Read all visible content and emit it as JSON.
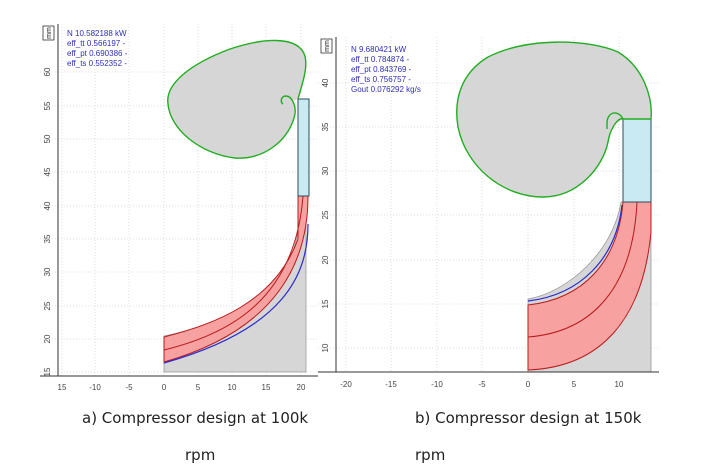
{
  "colors": {
    "volute_fill": "#d6d6d6",
    "volute_stroke": "#1fae1f",
    "impeller_fill": "#f7a1a1",
    "impeller_stroke": "#b81a1a",
    "diffuser_fill": "#c9eaf3",
    "shroud_stroke": "#2a2ad0",
    "annotation_text": "#2e2eb8",
    "grid": "#cfcfcf"
  },
  "panels": [
    {
      "unit_label": "mm",
      "annotations": [
        "N 10.582188 kW",
        "eff_tt 0.566197 -",
        "eff_pt 0.690386 -",
        "eff_ts 0.552352 -"
      ],
      "x_ticks": [
        "15",
        "-10",
        "-5",
        "0",
        "5",
        "10",
        "15",
        "20"
      ],
      "y_ticks": [
        "60",
        "55",
        "50",
        "45",
        "40",
        "35",
        "30",
        "25",
        "20",
        "15"
      ],
      "caption": "a) Compressor design at 100k",
      "caption_line2": "rpm"
    },
    {
      "unit_label": "mm",
      "annotations": [
        "N 9.680421 kW",
        "eff_tt 0.784874 -",
        "eff_pt 0.843769 -",
        "eff_ts 0.756757 -",
        "Gout 0.076292 kg/s"
      ],
      "x_ticks": [
        "-20",
        "-15",
        "-10",
        "-5",
        "0",
        "5",
        "10"
      ],
      "y_ticks": [
        "40",
        "35",
        "30",
        "25",
        "20",
        "15",
        "10"
      ],
      "caption": "b) Compressor design at 150k",
      "caption_line2": "rpm"
    }
  ]
}
